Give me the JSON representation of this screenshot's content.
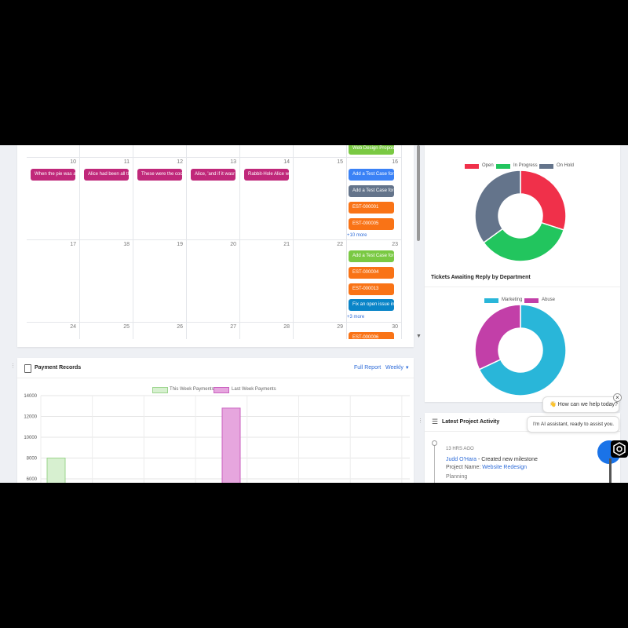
{
  "calendar": {
    "week1_days": [
      "10",
      "11",
      "12",
      "13",
      "14",
      "15",
      "16"
    ],
    "week2_days": [
      "17",
      "18",
      "19",
      "20",
      "21",
      "22",
      "23"
    ],
    "week3_days": [
      "24",
      "25",
      "26",
      "27",
      "28",
      "29",
      "30"
    ],
    "prev_event": "Web Design Propos",
    "week1_events": [
      "When the pie was a",
      "Alice had been all tl",
      "These were the coc",
      "Alice, 'and if it wasr",
      "Rabbit-Hole Alice w"
    ],
    "week1_sat_events": [
      "Add a Test Case for",
      "Add a Test Case for",
      "EST-000001",
      "EST-000005"
    ],
    "week1_more": "+10 more",
    "week2_sat_events": [
      "Add a Test Case for",
      "EST-000004",
      "EST-000013",
      "Fix an open issue in"
    ],
    "week2_more": "+3 more",
    "week3_sat_event": "EST-000006"
  },
  "payment": {
    "title": "Payment Records",
    "full_report": "Full Report",
    "period": "Weekly",
    "legend_this": "This Week Payments",
    "legend_last": "Last Week Payments",
    "colors": {
      "this_fill": "#d7f0d0",
      "this_stroke": "#9bd48c",
      "last_fill": "#e6a6de",
      "last_stroke": "#c95fbf"
    }
  },
  "status_chart": {
    "legend": [
      "Open",
      "In Progress",
      "On Hold"
    ],
    "colors": [
      "#f0304a",
      "#22c55e",
      "#64748b"
    ]
  },
  "department_chart": {
    "title": "Tickets Awaiting Reply by Department",
    "legend": [
      "Marketing",
      "Abuse"
    ],
    "colors": [
      "#29b6d9",
      "#c23fa8"
    ]
  },
  "activity": {
    "title": "Latest Project Activity",
    "time": "13 HRS AGO",
    "user": "Judd O'Hara",
    "action": " - Created new milestone",
    "project_label": "Project Name: ",
    "project_name": "Website Redesign",
    "milestone": "Planning"
  },
  "chat": {
    "greeting": "👋 How can we help today?",
    "assistant": "I'm AI assistant, ready to assist you.",
    "close_glyph": "×"
  },
  "chart_data": [
    {
      "type": "bar",
      "title": "Payment Records",
      "series": [
        {
          "name": "This Week Payments",
          "values": [
            8000
          ]
        },
        {
          "name": "Last Week Payments",
          "values": [
            12800
          ]
        }
      ],
      "ylim": [
        6000,
        14000
      ],
      "y_ticks": [
        "6000",
        "8000",
        "10000",
        "12000",
        "14000"
      ],
      "legend_position": "top"
    },
    {
      "type": "pie",
      "categories": [
        "Open",
        "In Progress",
        "On Hold"
      ],
      "values": [
        30,
        35,
        35
      ],
      "legend_position": "top"
    },
    {
      "type": "pie",
      "title": "Tickets Awaiting Reply by Department",
      "categories": [
        "Marketing",
        "Abuse"
      ],
      "values": [
        68,
        32
      ],
      "legend_position": "top"
    }
  ]
}
